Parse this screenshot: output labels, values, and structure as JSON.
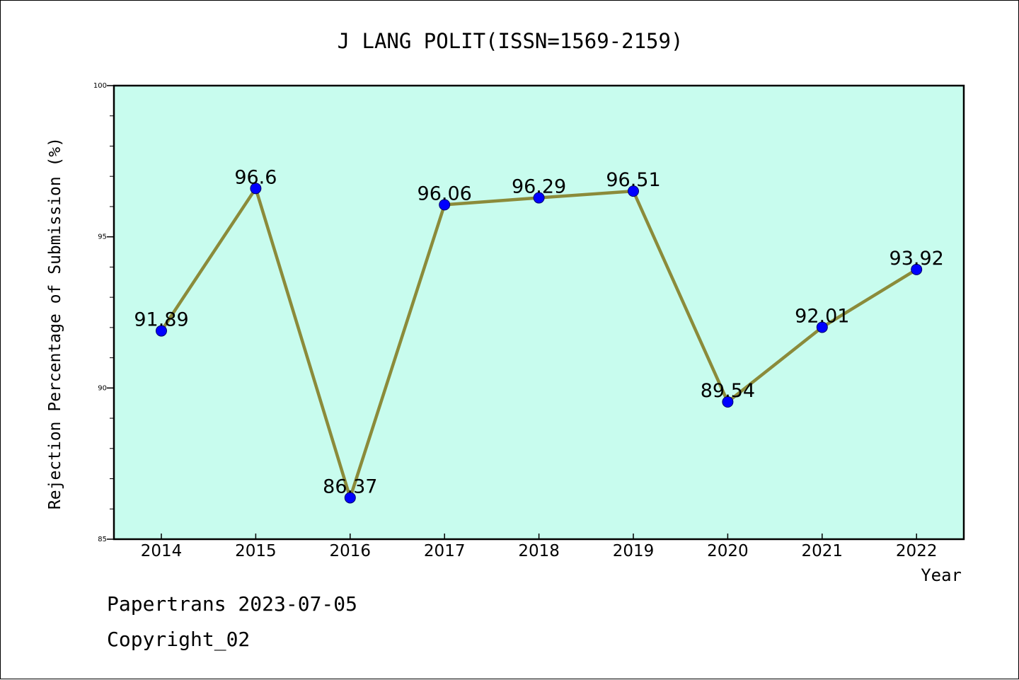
{
  "chart_data": {
    "type": "line",
    "title": "J LANG POLIT(ISSN=1569-2159)",
    "xlabel": "Year",
    "ylabel": "Rejection Percentage of Submission (%)",
    "categories": [
      "2014",
      "2015",
      "2016",
      "2017",
      "2018",
      "2019",
      "2020",
      "2021",
      "2022"
    ],
    "series": [
      {
        "values": [
          91.89,
          96.6,
          86.37,
          96.06,
          96.29,
          96.51,
          89.54,
          92.01,
          93.92
        ],
        "labels": [
          "91.89",
          "96.6",
          "86.37",
          "96.06",
          "96.29",
          "96.51",
          "89.54",
          "92.01",
          "93.92"
        ]
      }
    ],
    "ylim": [
      85,
      100
    ],
    "yticks": [
      "85",
      "90",
      "95",
      "100"
    ],
    "grid": false,
    "colors": {
      "plot_background": "#c8fcee",
      "line": "#8b8b3a",
      "marker": "#0000ff"
    }
  },
  "footer": {
    "line1": "Papertrans 2023-07-05",
    "line2": "Copyright_02"
  }
}
